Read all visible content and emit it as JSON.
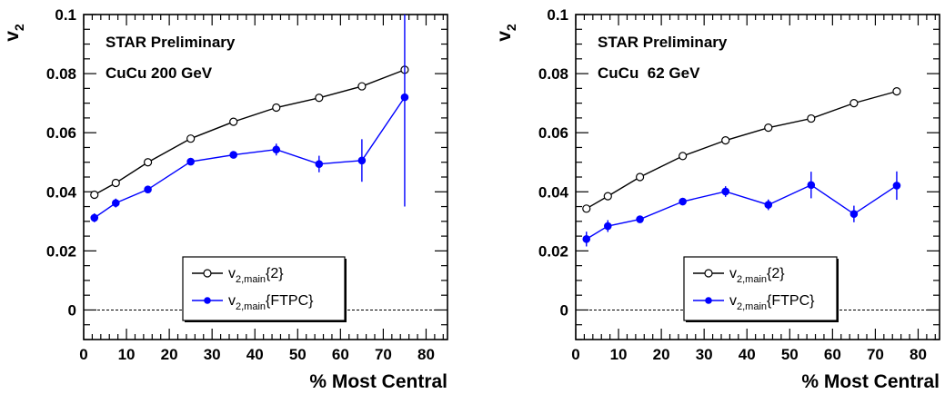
{
  "charts": [
    {
      "annotations": [
        "STAR Preliminary",
        "CuCu 200 GeV"
      ],
      "ylabel": "v",
      "ylabel_sub": "2",
      "xlabel": "% Most Central"
    },
    {
      "annotations": [
        "STAR Preliminary",
        "CuCu  62 GeV"
      ],
      "ylabel": "v",
      "ylabel_sub": "2",
      "xlabel": "% Most Central"
    }
  ],
  "legend": [
    {
      "main": "v",
      "sub": "2,main",
      "suffix": "{2}"
    },
    {
      "main": "v",
      "sub": "2,main",
      "suffix": "{FTPC}"
    }
  ],
  "chart_data": [
    {
      "type": "line",
      "title": "",
      "xlabel": "% Most Central",
      "ylabel": "v2",
      "xlim": [
        0,
        85
      ],
      "ylim": [
        -0.01,
        0.1
      ],
      "x_ticks": [
        0,
        10,
        20,
        30,
        40,
        50,
        60,
        70,
        80
      ],
      "y_ticks": [
        0,
        0.02,
        0.04,
        0.06,
        0.08,
        0.1
      ],
      "y_tick_labels": [
        "0",
        "0.02",
        "0.04",
        "0.06",
        "0.08",
        "0.1"
      ],
      "zero_line": true,
      "grid": false,
      "legend_position": "bottom-center",
      "series": [
        {
          "name": "v2,main{2}",
          "marker": "open-circle",
          "color": "#000000",
          "x": [
            2.5,
            7.5,
            15,
            25,
            35,
            45,
            55,
            65,
            75
          ],
          "y": [
            0.039,
            0.043,
            0.05,
            0.058,
            0.0637,
            0.0685,
            0.0718,
            0.0757,
            0.0813
          ],
          "err": [
            0,
            0,
            0,
            0,
            0,
            0,
            0,
            0,
            0
          ]
        },
        {
          "name": "v2,main{FTPC}",
          "marker": "filled-circle",
          "color": "#0000ff",
          "x": [
            2.5,
            7.5,
            15,
            25,
            35,
            45,
            55,
            65,
            75
          ],
          "y": [
            0.0312,
            0.0362,
            0.0408,
            0.0502,
            0.0525,
            0.0543,
            0.0494,
            0.0506,
            0.072
          ],
          "err": [
            0.0015,
            0.0015,
            0.0008,
            0.0008,
            0.0012,
            0.002,
            0.0028,
            0.0072,
            0.037
          ]
        }
      ]
    },
    {
      "type": "line",
      "title": "",
      "xlabel": "% Most Central",
      "ylabel": "v2",
      "xlim": [
        0,
        85
      ],
      "ylim": [
        -0.01,
        0.1
      ],
      "x_ticks": [
        0,
        10,
        20,
        30,
        40,
        50,
        60,
        70,
        80
      ],
      "y_ticks": [
        0,
        0.02,
        0.04,
        0.06,
        0.08,
        0.1
      ],
      "y_tick_labels": [
        "0",
        "0.02",
        "0.04",
        "0.06",
        "0.08",
        "0.1"
      ],
      "zero_line": true,
      "grid": false,
      "legend_position": "bottom-center",
      "series": [
        {
          "name": "v2,main{2}",
          "marker": "open-circle",
          "color": "#000000",
          "x": [
            2.5,
            7.5,
            15,
            25,
            35,
            45,
            55,
            65,
            75
          ],
          "y": [
            0.0343,
            0.0385,
            0.045,
            0.0521,
            0.0574,
            0.0617,
            0.0648,
            0.07,
            0.074
          ],
          "err": [
            0,
            0,
            0,
            0,
            0,
            0,
            0,
            0,
            0
          ]
        },
        {
          "name": "v2,main{FTPC}",
          "marker": "filled-circle",
          "color": "#0000ff",
          "x": [
            2.5,
            7.5,
            15,
            25,
            35,
            45,
            55,
            65,
            75
          ],
          "y": [
            0.024,
            0.0284,
            0.0307,
            0.0367,
            0.0401,
            0.0356,
            0.0423,
            0.0325,
            0.0421
          ],
          "err": [
            0.0025,
            0.002,
            0.001,
            0.0012,
            0.0018,
            0.0018,
            0.0045,
            0.0028,
            0.0048
          ]
        }
      ]
    }
  ]
}
